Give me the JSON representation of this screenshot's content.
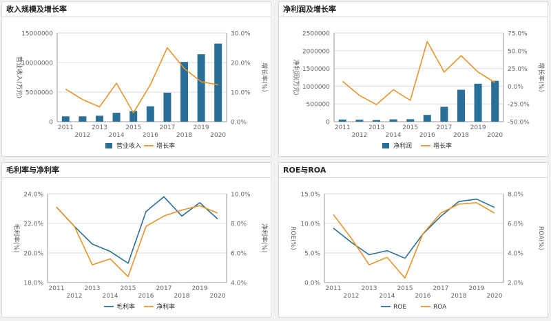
{
  "colors": {
    "bar": "#2a6f97",
    "line1": "#2a6f97",
    "line2": "#e8942a",
    "axis": "#666666",
    "grid": "#dddddd"
  },
  "chart_data": [
    {
      "id": "revenue",
      "type": "bar",
      "title": "收入规模及增长率",
      "categories": [
        "2011",
        "2012",
        "2013",
        "2014",
        "2015",
        "2016",
        "2017",
        "2018",
        "2019",
        "2020"
      ],
      "series": [
        {
          "name": "营业收入",
          "type": "bar",
          "axis": "left",
          "values": [
            900000,
            900000,
            1000000,
            1500000,
            1800000,
            2600000,
            4900000,
            10100000,
            11400000,
            13200000
          ]
        },
        {
          "name": "增长率",
          "type": "line",
          "axis": "right",
          "values": [
            11.0,
            7.5,
            5.0,
            13.0,
            3.0,
            12.5,
            25.0,
            18.0,
            13.5,
            12.5
          ]
        }
      ],
      "yleft": {
        "label": "营业收入(万元)",
        "min": 0,
        "max": 15000000,
        "ticks": [
          0,
          5000000,
          10000000,
          15000000
        ],
        "tick_labels": [
          "0",
          "5000000",
          "10000000",
          "15000000"
        ]
      },
      "yright": {
        "label": "增长率(%)",
        "min": 0,
        "max": 30,
        "ticks": [
          0,
          10,
          20,
          30
        ],
        "tick_labels": [
          "0.0%",
          "10.0%",
          "20.0%",
          "30.0%"
        ]
      },
      "legend": "bottom-center"
    },
    {
      "id": "profit",
      "type": "bar",
      "title": "净利润及增长率",
      "categories": [
        "2011",
        "2012",
        "2013",
        "2014",
        "2015",
        "2016",
        "2017",
        "2018",
        "2019",
        "2020"
      ],
      "series": [
        {
          "name": "净利润",
          "type": "bar",
          "axis": "left",
          "values": [
            60000,
            55000,
            45000,
            65000,
            70000,
            190000,
            420000,
            900000,
            1070000,
            1150000
          ]
        },
        {
          "name": "增长率",
          "type": "line",
          "axis": "right",
          "values": [
            7.0,
            -13.0,
            -26.0,
            -5.0,
            -20.0,
            63.0,
            20.0,
            43.0,
            20.0,
            5.0
          ]
        }
      ],
      "yleft": {
        "label": "净利润(万元)",
        "min": 0,
        "max": 2500000,
        "ticks": [
          0,
          500000,
          1000000,
          1500000,
          2000000,
          2500000
        ],
        "tick_labels": [
          "0",
          "500000",
          "1000000",
          "1500000",
          "2000000",
          "2500000"
        ]
      },
      "yright": {
        "label": "增长率(%)",
        "min": -50,
        "max": 75,
        "ticks": [
          -50,
          -25,
          0,
          25,
          50,
          75
        ],
        "tick_labels": [
          "-50.0%",
          "-25.0%",
          "0.0%",
          "25.0%",
          "50.0%",
          "75.0%"
        ]
      },
      "legend": "bottom-center"
    },
    {
      "id": "margin",
      "type": "line",
      "title": "毛利率与净利率",
      "categories": [
        "2011",
        "2012",
        "2013",
        "2014",
        "2015",
        "2016",
        "2017",
        "2018",
        "2019",
        "2020"
      ],
      "series": [
        {
          "name": "毛利率",
          "type": "line",
          "axis": "left",
          "values": [
            23.1,
            21.8,
            20.6,
            20.1,
            19.3,
            22.8,
            23.8,
            22.5,
            23.4,
            22.3
          ]
        },
        {
          "name": "净利率",
          "type": "line",
          "axis": "right",
          "values": [
            9.1,
            7.8,
            5.2,
            5.6,
            4.4,
            7.8,
            8.5,
            8.9,
            9.2,
            8.7
          ]
        }
      ],
      "yleft": {
        "label": "毛利率(%)",
        "min": 18,
        "max": 24,
        "ticks": [
          18,
          20,
          22,
          24
        ],
        "tick_labels": [
          "18.0%",
          "20.0%",
          "22.0%",
          "24.0%"
        ]
      },
      "yright": {
        "label": "净利率(%)",
        "min": 4,
        "max": 10,
        "ticks": [
          4,
          6,
          8,
          10
        ],
        "tick_labels": [
          "4.0%",
          "6.0%",
          "8.0%",
          "10.0%"
        ]
      },
      "legend": "bottom-center"
    },
    {
      "id": "roe",
      "type": "line",
      "title": "ROE与ROA",
      "categories": [
        "2011",
        "2012",
        "2013",
        "2014",
        "2015",
        "2016",
        "2017",
        "2018",
        "2019",
        "2020"
      ],
      "series": [
        {
          "name": "ROE",
          "type": "line",
          "axis": "left",
          "values": [
            9.2,
            6.8,
            4.7,
            5.4,
            4.1,
            8.2,
            11.2,
            13.7,
            14.1,
            12.7
          ]
        },
        {
          "name": "ROA",
          "type": "line",
          "axis": "right",
          "values": [
            6.6,
            5.0,
            3.2,
            3.7,
            2.3,
            5.3,
            6.7,
            7.3,
            7.4,
            6.7
          ]
        }
      ],
      "yleft": {
        "label": "ROE(%)",
        "min": 0,
        "max": 15,
        "ticks": [
          0,
          5,
          10,
          15
        ],
        "tick_labels": [
          "0.0%",
          "5.0%",
          "10.0%",
          "15.0%"
        ]
      },
      "yright": {
        "label": "ROA(%)",
        "min": 2,
        "max": 8,
        "ticks": [
          2,
          4,
          6,
          8
        ],
        "tick_labels": [
          "2.0%",
          "4.0%",
          "6.0%",
          "8.0%"
        ]
      },
      "legend": "bottom-center"
    }
  ]
}
